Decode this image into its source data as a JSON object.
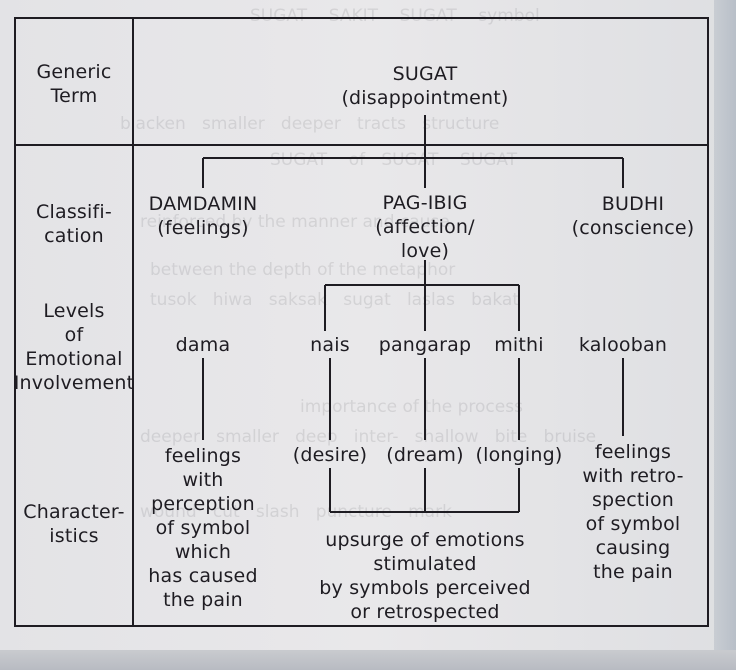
{
  "row_labels": {
    "generic_term": [
      "Generic",
      "Term"
    ],
    "classification": [
      "Classifi-",
      "cation"
    ],
    "levels": [
      "Levels",
      "of",
      "Emotional",
      "Involvement"
    ],
    "characteristics": [
      "Character-",
      "istics"
    ]
  },
  "generic": {
    "term": "SUGAT",
    "gloss": "(disappointment)"
  },
  "classes": {
    "damdamin": [
      "DAMDAMIN",
      "(feelings)"
    ],
    "pagibig": [
      "PAG-IBIG",
      "(affection/",
      "love)"
    ],
    "budhi": [
      "BUDHI",
      "(conscience)"
    ]
  },
  "levels": {
    "dama": "dama",
    "nais": "nais",
    "pangarap": "pangarap",
    "mithi": "mithi",
    "kalooban": "kalooban"
  },
  "characteristics": {
    "damdamin": [
      "feelings",
      "with",
      "perception",
      "of symbol",
      "which",
      "has caused",
      "the pain"
    ],
    "nais": "(desire)",
    "pangarap": "(dream)",
    "mithi": "(longing)",
    "pagibig": [
      "upsurge of emotions",
      "stimulated",
      "by symbols perceived",
      "or retrospected"
    ],
    "budhi": [
      "feelings",
      "with retro-",
      "spection",
      "of symbol",
      "causing",
      "the pain"
    ]
  }
}
